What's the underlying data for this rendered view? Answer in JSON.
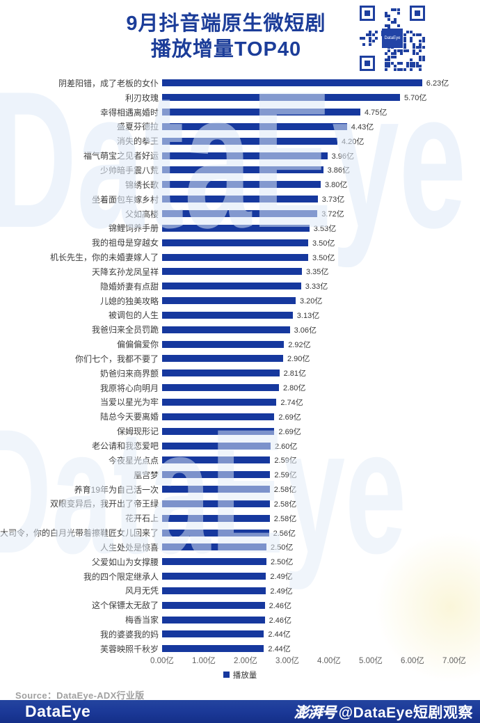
{
  "header": {
    "title_line1": "9月抖音端原生微短剧",
    "title_line2": "播放增量TOP40",
    "qr_center_label": "DataEye"
  },
  "watermark": {
    "text": "DataEye"
  },
  "chart_data": {
    "type": "bar",
    "orientation": "horizontal",
    "title": "9月抖音端原生微短剧播放增量TOP40",
    "series_name": "播放量",
    "unit": "亿",
    "xlim": [
      0,
      7
    ],
    "x_ticks": [
      "0.00亿",
      "1.00亿",
      "2.00亿",
      "3.00亿",
      "4.00亿",
      "5.00亿",
      "6.00亿",
      "7.00亿"
    ],
    "legend": [
      "播放量"
    ],
    "legend_position": "bottom",
    "grid": false,
    "bar_color": "#16389e",
    "categories": [
      "阴差阳错，成了老板的女仆",
      "利刃玫瑰",
      "幸得相遇离婚时",
      "盛夏芬德拉",
      "消失的拳王",
      "福气萌宝之见者好运",
      "少帅暗手震八荒",
      "锦绣长歌",
      "坐着面包车嫁乡村",
      "父如高楼",
      "锦鲤饲养手册",
      "我的祖母是穿越女",
      "机长先生，你的未婚妻嫁人了",
      "天降玄孙龙凤呈祥",
      "隐婚娇妻有点甜",
      "儿媳的独美攻略",
      "被调包的人生",
      "我爸归来全员罚跪",
      "偏偏偏爱你",
      "你们七个，我都不要了",
      "奶爸归来商界颤",
      "我原将心向明月",
      "当爱以星光为牢",
      "陆总今天要离婚",
      "保姆现形记",
      "老公请和我恋爱吧",
      "今夜星光点点",
      "凰宫梦",
      "养育19年为自己活一次",
      "双眼变异后，我开出了帝王绿",
      "花开石上",
      "大司令，你的白月光带着擦鞋匠女儿回来了",
      "人生处处是惊喜",
      "父爱如山为女撑腰",
      "我的四个限定继承人",
      "风月无凭",
      "这个保镖太无敌了",
      "梅香当家",
      "我的婆婆我的妈",
      "芙蓉映照千秋岁"
    ],
    "values": [
      6.23,
      5.7,
      4.75,
      4.43,
      4.2,
      3.96,
      3.86,
      3.8,
      3.73,
      3.72,
      3.53,
      3.5,
      3.5,
      3.35,
      3.33,
      3.2,
      3.13,
      3.06,
      2.92,
      2.9,
      2.81,
      2.8,
      2.74,
      2.69,
      2.69,
      2.6,
      2.59,
      2.59,
      2.58,
      2.58,
      2.58,
      2.56,
      2.5,
      2.5,
      2.49,
      2.49,
      2.46,
      2.46,
      2.44,
      2.44
    ]
  },
  "legend": {
    "label": "播放量"
  },
  "footer": {
    "source": "Source：DataEye-ADX行业版",
    "brand": "DataEye",
    "platform_badge": "澎湃号",
    "account": "@DataEye短剧观察"
  },
  "colors": {
    "bar": "#16389e",
    "title": "#1c3d99",
    "footer_bg": "#1c3a99",
    "watermark": "#e2ebf7"
  }
}
